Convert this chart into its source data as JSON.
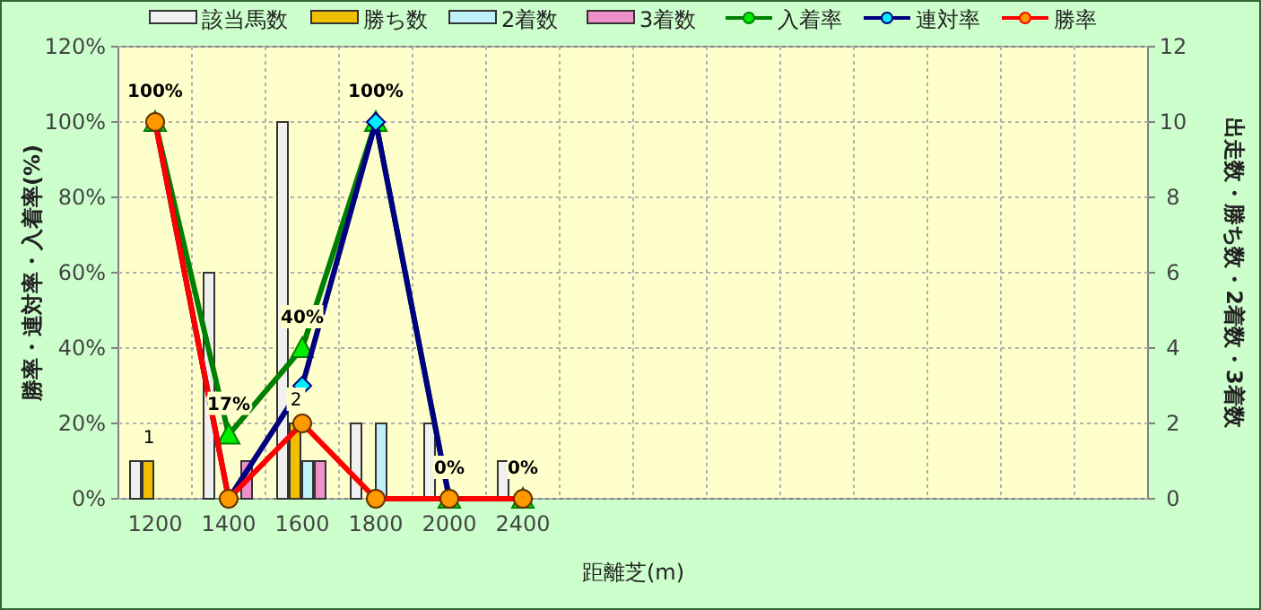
{
  "chart_data": {
    "type": "bar",
    "xlabel": "距離芝(m)",
    "ylabel": "勝率・連対率・入着率(%)",
    "y2label": "出走数・勝ち数・2着数・3着数",
    "categories": [
      "1200",
      "1400",
      "1600",
      "1800",
      "2000",
      "2400",
      null,
      null,
      null,
      null,
      null,
      null,
      null,
      null
    ],
    "ylim": [
      0,
      120
    ],
    "yticks": [
      {
        "value": 0,
        "label": "0%"
      },
      {
        "value": 20,
        "label": "20%"
      },
      {
        "value": 40,
        "label": "40%"
      },
      {
        "value": 60,
        "label": "60%"
      },
      {
        "value": 80,
        "label": "80%"
      },
      {
        "value": 100,
        "label": "100%"
      },
      {
        "value": 120,
        "label": "120%"
      }
    ],
    "y2lim": [
      0,
      12
    ],
    "y2ticks": [
      0,
      2,
      4,
      6,
      8,
      10,
      12
    ],
    "grid": true,
    "legend": "top",
    "series": [
      {
        "name": "該当馬数",
        "axis": "y2",
        "color": "#f0f0f0",
        "values": [
          1,
          6,
          10,
          2,
          2,
          1,
          null,
          null,
          null,
          null,
          null,
          null,
          null,
          null
        ]
      },
      {
        "name": "勝ち数",
        "axis": "y2",
        "color": "#f0c000",
        "values": [
          1,
          0,
          2,
          0,
          0,
          0,
          null,
          null,
          null,
          null,
          null,
          null,
          null,
          null
        ],
        "value_labels": [
          "1",
          null,
          "2",
          null,
          null,
          null,
          null,
          null,
          null,
          null,
          null,
          null,
          null,
          null
        ]
      },
      {
        "name": "2着数",
        "axis": "y2",
        "color": "#c0f0f8",
        "values": [
          0,
          0,
          1,
          2,
          0,
          0,
          null,
          null,
          null,
          null,
          null,
          null,
          null,
          null
        ]
      },
      {
        "name": "3着数",
        "axis": "y2",
        "color": "#f090c8",
        "values": [
          0,
          1,
          1,
          0,
          0,
          0,
          null,
          null,
          null,
          null,
          null,
          null,
          null,
          null
        ]
      },
      {
        "name": "入着率",
        "type": "line",
        "marker": "triangle",
        "color": "#008000",
        "values": [
          100,
          17,
          40,
          100,
          0,
          0,
          null,
          null,
          null,
          null,
          null,
          null,
          null,
          null
        ],
        "value_labels": [
          "100%",
          "17%",
          "40%",
          "100%",
          "0%",
          "0%",
          null,
          null,
          null,
          null,
          null,
          null,
          null,
          null
        ]
      },
      {
        "name": "連対率",
        "type": "line",
        "marker": "diamond",
        "color": "#000080",
        "values": [
          100,
          0,
          30,
          100,
          0,
          0,
          null,
          null,
          null,
          null,
          null,
          null,
          null,
          null
        ]
      },
      {
        "name": "勝率",
        "type": "line",
        "marker": "circle",
        "color": "#ff0000",
        "values": [
          100,
          0,
          20,
          0,
          0,
          0,
          null,
          null,
          null,
          null,
          null,
          null,
          null,
          null
        ]
      }
    ]
  }
}
